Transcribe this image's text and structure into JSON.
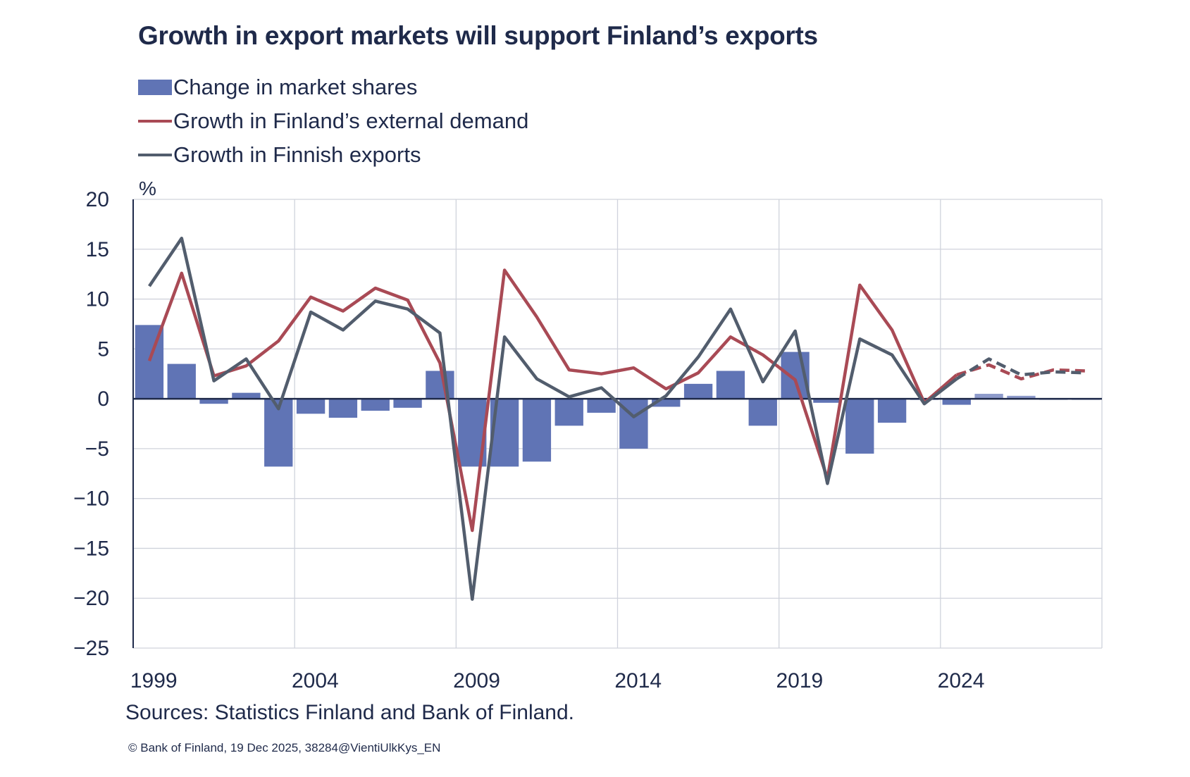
{
  "chart_data": {
    "type": "bar+line",
    "title": "Growth in export markets will support Finland’s exports",
    "ylabel": "%",
    "ylim": [
      -25,
      20
    ],
    "yticks": [
      20,
      15,
      10,
      5,
      0,
      -5,
      -10,
      -15,
      -20,
      -25
    ],
    "ytick_labels": [
      "20",
      "15",
      "10",
      "5",
      "0",
      "−5",
      "−10",
      "−15",
      "−20",
      "−25"
    ],
    "x": [
      1999,
      2000,
      2001,
      2002,
      2003,
      2004,
      2005,
      2006,
      2007,
      2008,
      2009,
      2010,
      2011,
      2012,
      2013,
      2014,
      2015,
      2016,
      2017,
      2018,
      2019,
      2020,
      2021,
      2022,
      2023,
      2024,
      2025,
      2026,
      2027,
      2028
    ],
    "xtick_labels": [
      "1999",
      "2004",
      "2009",
      "2014",
      "2019",
      "2024"
    ],
    "forecast_from": 2025,
    "grid": true,
    "legend_position": "top-left",
    "series": [
      {
        "name": "Change in market shares",
        "type": "bar",
        "color": "#6074b5",
        "forecast_color": "#8e9bcb",
        "values": [
          7.4,
          3.5,
          -0.5,
          0.6,
          -6.8,
          -1.5,
          -1.9,
          -1.2,
          -0.9,
          2.8,
          -6.8,
          -6.8,
          -6.3,
          -2.7,
          -1.4,
          -5.0,
          -0.8,
          1.5,
          2.8,
          -2.7,
          4.7,
          -0.4,
          -5.5,
          -2.4,
          -0.1,
          -0.6,
          0.5,
          0.3,
          -0.1,
          -0.1
        ]
      },
      {
        "name": "Growth in Finland’s external demand",
        "type": "line",
        "color": "#a94a55",
        "values": [
          3.8,
          12.6,
          2.3,
          3.3,
          5.8,
          10.2,
          8.8,
          11.1,
          9.9,
          3.6,
          -13.2,
          12.9,
          8.2,
          2.9,
          2.5,
          3.1,
          1.0,
          2.6,
          6.2,
          4.4,
          1.9,
          -8.0,
          11.4,
          6.9,
          -0.4,
          2.4,
          3.4,
          2.0,
          2.9,
          2.8
        ]
      },
      {
        "name": "Growth in Finnish exports",
        "type": "line",
        "color": "#525d6d",
        "values": [
          11.3,
          16.1,
          1.8,
          4.0,
          -1.0,
          8.7,
          6.9,
          9.8,
          9.0,
          6.6,
          -20.1,
          6.2,
          2.0,
          0.2,
          1.1,
          -1.8,
          0.3,
          4.2,
          9.0,
          1.7,
          6.8,
          -8.5,
          6.0,
          4.4,
          -0.5,
          2.0,
          4.0,
          2.4,
          2.7,
          2.6
        ]
      }
    ]
  },
  "sources": "Sources: Statistics Finland and Bank of Finland.",
  "copyright": "© Bank of Finland, 19 Dec 2025, 38284@VientiUlkKys_EN"
}
